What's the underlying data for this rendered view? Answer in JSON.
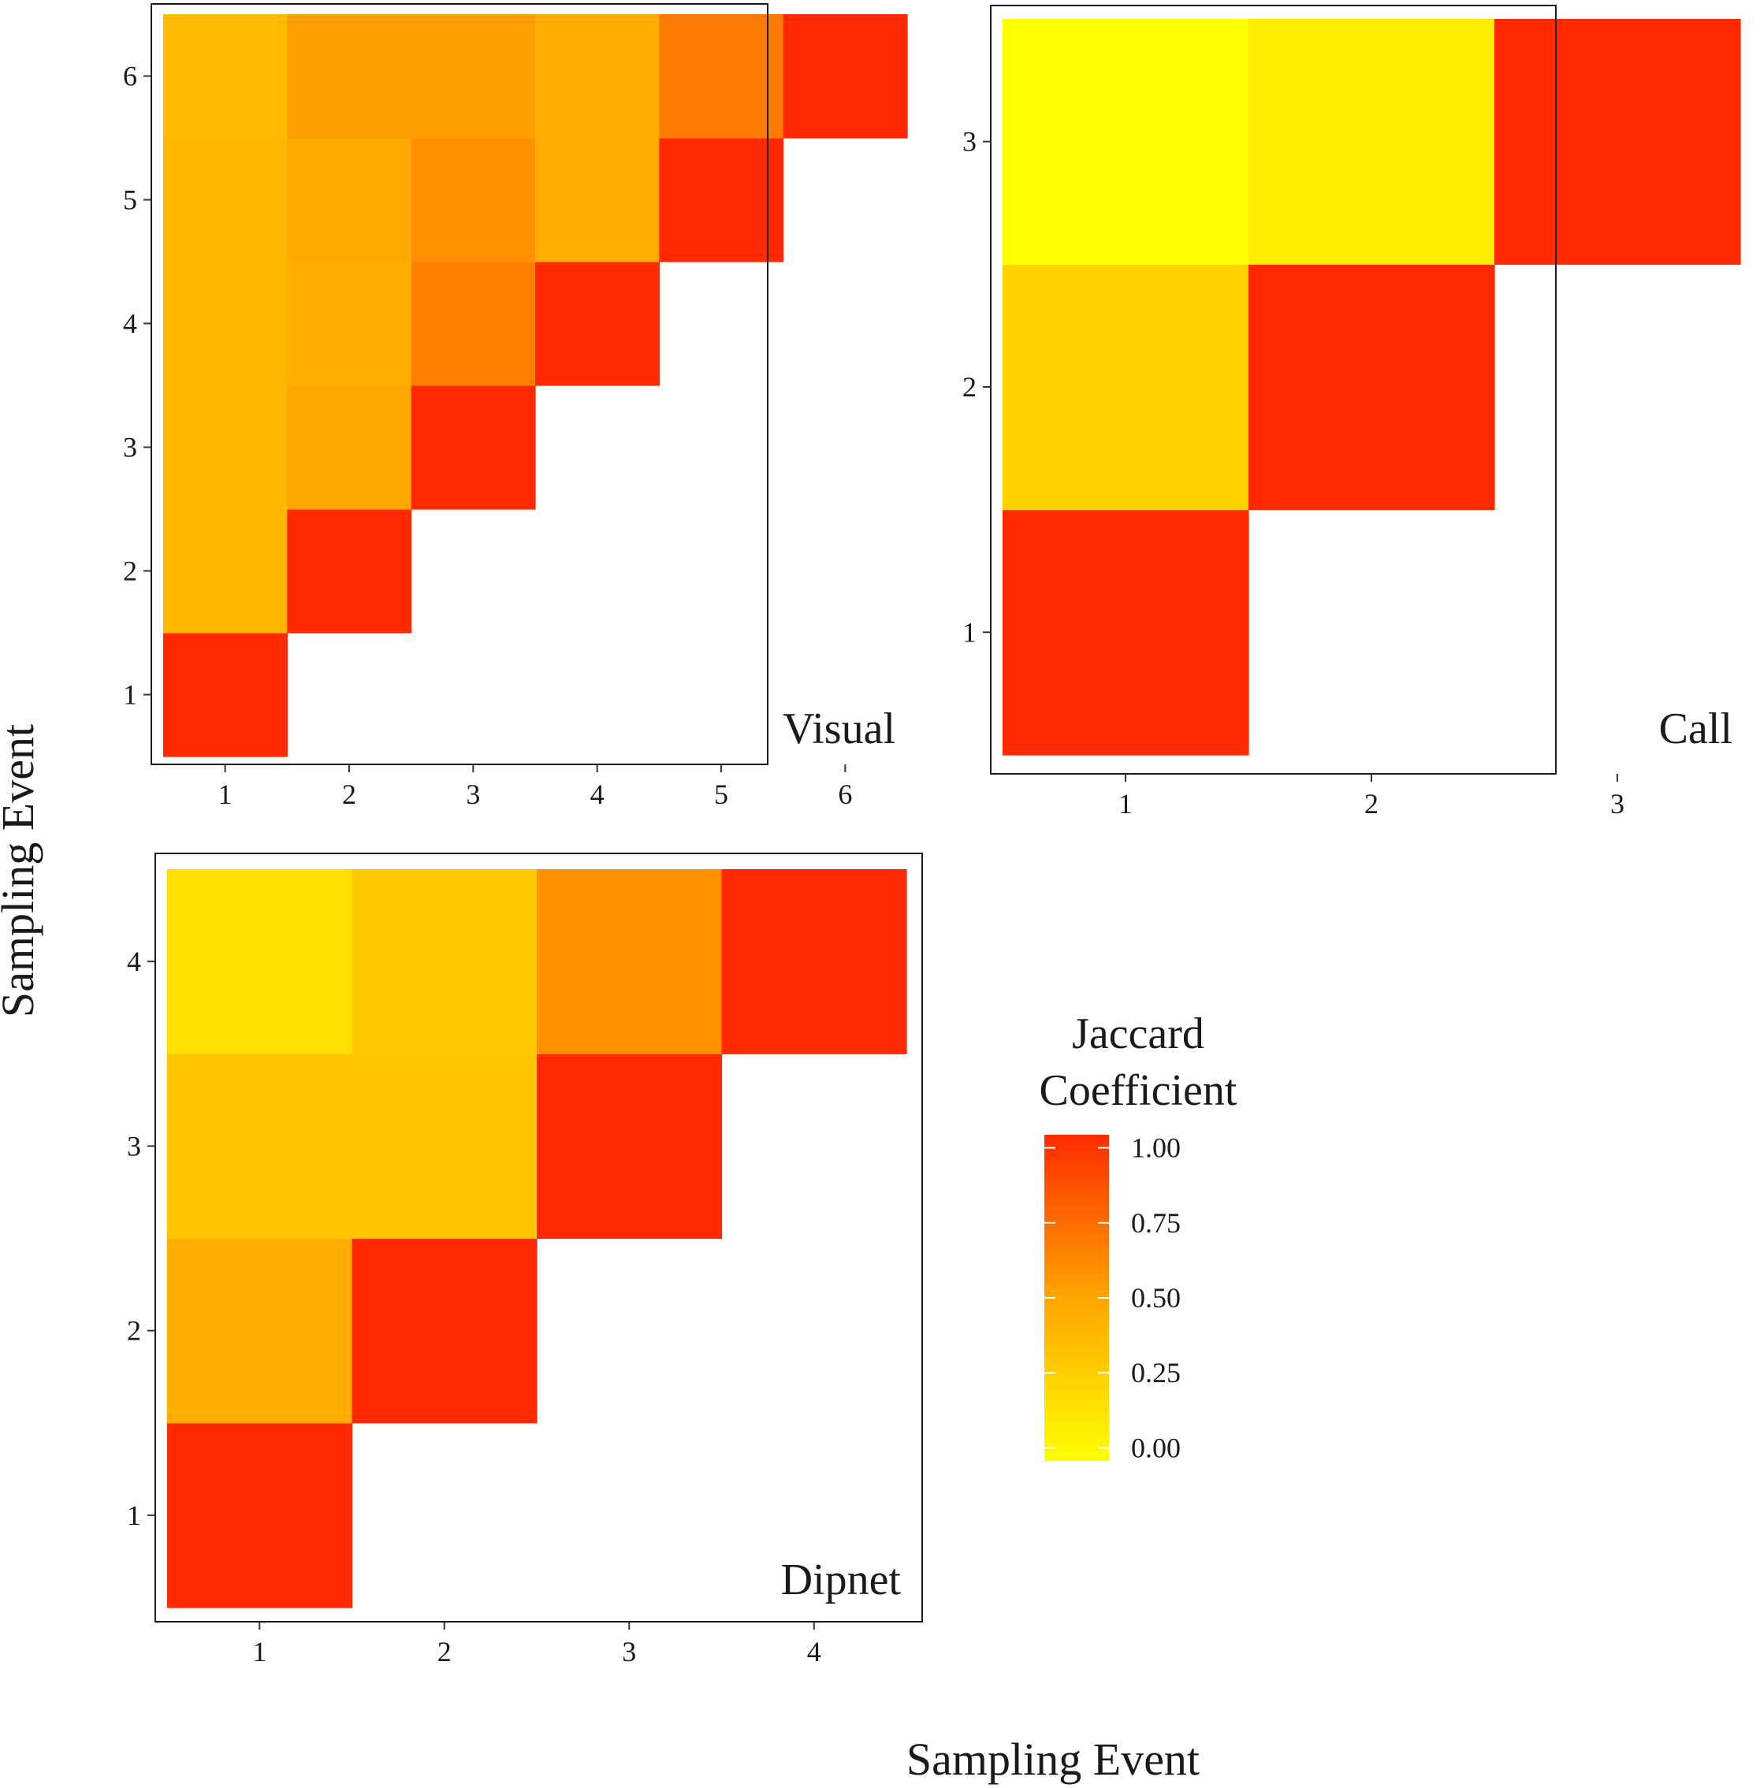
{
  "figure": {
    "xlabel": "Sampling Event",
    "ylabel": "Sampling Event"
  },
  "chart_data": [
    {
      "type": "heatmap",
      "title": "Visual",
      "x": [
        1,
        2,
        3,
        4,
        5,
        6
      ],
      "y": [
        1,
        2,
        3,
        4,
        5,
        6
      ],
      "xticks": [
        "1",
        "2",
        "3",
        "4",
        "5",
        "6"
      ],
      "yticks": [
        "1",
        "2",
        "3",
        "4",
        "5",
        "6"
      ],
      "cells": [
        {
          "x": 1,
          "y": 1,
          "value": 1.0
        },
        {
          "x": 1,
          "y": 2,
          "value": 0.4
        },
        {
          "x": 2,
          "y": 2,
          "value": 1.0
        },
        {
          "x": 1,
          "y": 3,
          "value": 0.4
        },
        {
          "x": 2,
          "y": 3,
          "value": 0.5
        },
        {
          "x": 3,
          "y": 3,
          "value": 1.0
        },
        {
          "x": 1,
          "y": 4,
          "value": 0.4
        },
        {
          "x": 2,
          "y": 4,
          "value": 0.45
        },
        {
          "x": 3,
          "y": 4,
          "value": 0.65
        },
        {
          "x": 4,
          "y": 4,
          "value": 1.0
        },
        {
          "x": 1,
          "y": 5,
          "value": 0.4
        },
        {
          "x": 2,
          "y": 5,
          "value": 0.48
        },
        {
          "x": 3,
          "y": 5,
          "value": 0.58
        },
        {
          "x": 4,
          "y": 5,
          "value": 0.45
        },
        {
          "x": 5,
          "y": 5,
          "value": 1.0
        },
        {
          "x": 1,
          "y": 6,
          "value": 0.38
        },
        {
          "x": 2,
          "y": 6,
          "value": 0.53
        },
        {
          "x": 3,
          "y": 6,
          "value": 0.53
        },
        {
          "x": 4,
          "y": 6,
          "value": 0.45
        },
        {
          "x": 5,
          "y": 6,
          "value": 0.67
        },
        {
          "x": 6,
          "y": 6,
          "value": 1.0
        }
      ]
    },
    {
      "type": "heatmap",
      "title": "Call",
      "x": [
        1,
        2,
        3
      ],
      "y": [
        1,
        2,
        3
      ],
      "xticks": [
        "1",
        "2",
        "3"
      ],
      "yticks": [
        "1",
        "2",
        "3"
      ],
      "cells": [
        {
          "x": 1,
          "y": 1,
          "value": 1.0
        },
        {
          "x": 1,
          "y": 2,
          "value": 0.25
        },
        {
          "x": 2,
          "y": 2,
          "value": 1.0
        },
        {
          "x": 1,
          "y": 3,
          "value": 0.0
        },
        {
          "x": 2,
          "y": 3,
          "value": 0.1
        },
        {
          "x": 3,
          "y": 3,
          "value": 1.0
        }
      ]
    },
    {
      "type": "heatmap",
      "title": "Dipnet",
      "x": [
        1,
        2,
        3,
        4
      ],
      "y": [
        1,
        2,
        3,
        4
      ],
      "xticks": [
        "1",
        "2",
        "3",
        "4"
      ],
      "yticks": [
        "1",
        "2",
        "3",
        "4"
      ],
      "cells": [
        {
          "x": 1,
          "y": 1,
          "value": 1.0
        },
        {
          "x": 1,
          "y": 2,
          "value": 0.45
        },
        {
          "x": 2,
          "y": 2,
          "value": 1.0
        },
        {
          "x": 1,
          "y": 3,
          "value": 0.33
        },
        {
          "x": 2,
          "y": 3,
          "value": 0.33
        },
        {
          "x": 3,
          "y": 3,
          "value": 1.0
        },
        {
          "x": 1,
          "y": 4,
          "value": 0.18
        },
        {
          "x": 2,
          "y": 4,
          "value": 0.3
        },
        {
          "x": 3,
          "y": 4,
          "value": 0.58
        },
        {
          "x": 4,
          "y": 4,
          "value": 1.0
        }
      ]
    }
  ],
  "legend": {
    "title_line1": "Jaccard",
    "title_line2": "Coefficient",
    "range": [
      0,
      1
    ],
    "ticks": [
      {
        "value": 1.0,
        "label": "1.00"
      },
      {
        "value": 0.75,
        "label": "0.75"
      },
      {
        "value": 0.5,
        "label": "0.50"
      },
      {
        "value": 0.25,
        "label": "0.25"
      },
      {
        "value": 0.0,
        "label": "0.00"
      }
    ],
    "colors": {
      "low": "#ffff00",
      "mid": "#ffa500",
      "high": "#ff2a00"
    }
  }
}
